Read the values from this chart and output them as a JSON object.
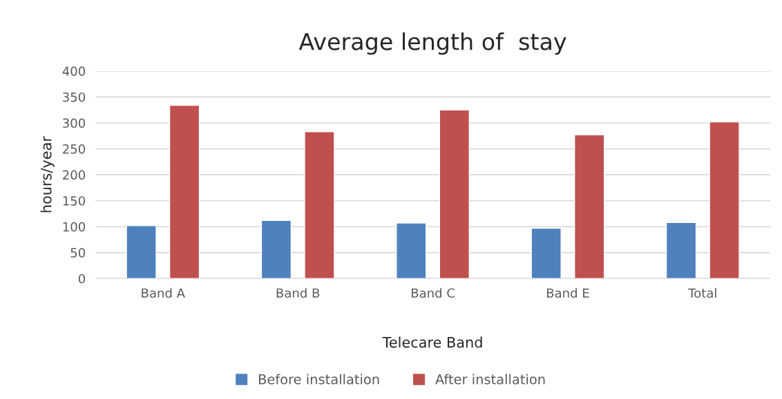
{
  "chart_data": {
    "type": "bar",
    "title": "Average length of  stay",
    "xlabel": "Telecare Band",
    "ylabel": "hours/year",
    "categories": [
      "Band A",
      "Band B",
      "Band C",
      "Band E",
      "Total"
    ],
    "series": [
      {
        "name": "Before installation",
        "color": "#4f81bd",
        "values": [
          102,
          112,
          107,
          97,
          108
        ]
      },
      {
        "name": "After installation",
        "color": "#c0504d",
        "values": [
          334,
          283,
          325,
          277,
          302
        ]
      }
    ],
    "ylim": [
      0,
      400
    ],
    "yticks": [
      0,
      50,
      100,
      150,
      200,
      250,
      300,
      350,
      400
    ],
    "grid": "y",
    "legend": "bottom"
  }
}
